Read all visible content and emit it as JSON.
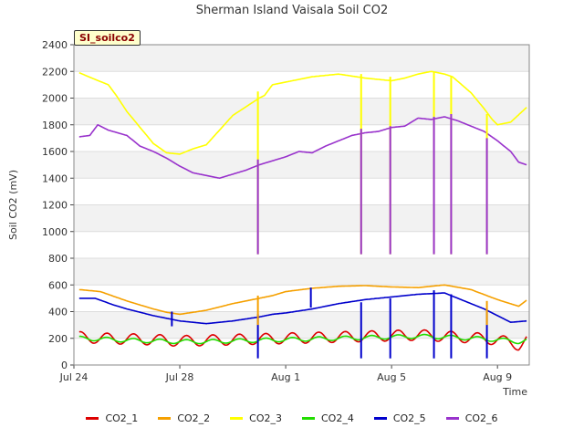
{
  "chart_data": {
    "type": "line",
    "title": "Sherman Island Vaisala Soil CO2",
    "site_label": "SI_soilco2",
    "xlabel": "Time",
    "ylabel": "Soil CO2 (mV)",
    "xlim": [
      0,
      17.2
    ],
    "ylim": [
      0,
      2400
    ],
    "x_ticks": [
      {
        "x": 0,
        "label": "Jul 24"
      },
      {
        "x": 4,
        "label": "Jul 28"
      },
      {
        "x": 8,
        "label": "Aug 1"
      },
      {
        "x": 12,
        "label": "Aug 5"
      },
      {
        "x": 16,
        "label": "Aug 9"
      }
    ],
    "y_ticks": [
      0,
      200,
      400,
      600,
      800,
      1000,
      1200,
      1400,
      1600,
      1800,
      2000,
      2200,
      2400
    ],
    "grid": "horizontal bands",
    "legend_position": "bottom",
    "series": [
      {
        "name": "CO2_1",
        "color": "#dd0000",
        "x": [
          0.2,
          1,
          2,
          3,
          4,
          5,
          6,
          7,
          8,
          9,
          10,
          11,
          12,
          13,
          14,
          15,
          16,
          16.8,
          17.1
        ],
        "y": [
          210,
          200,
          195,
          190,
          180,
          185,
          190,
          195,
          200,
          205,
          210,
          215,
          220,
          225,
          215,
          205,
          190,
          150,
          190
        ],
        "amp": 40
      },
      {
        "name": "CO2_2",
        "color": "#f5a000",
        "x": [
          0.2,
          1,
          2,
          3,
          3.5,
          4,
          5,
          6,
          7,
          7.5,
          8,
          9,
          10,
          11,
          12,
          13,
          14,
          15,
          16,
          16.8,
          17.1
        ],
        "y": [
          565,
          550,
          480,
          420,
          395,
          380,
          410,
          460,
          500,
          520,
          550,
          575,
          590,
          595,
          585,
          580,
          600,
          565,
          490,
          440,
          485
        ],
        "amp": 0
      },
      {
        "name": "CO2_3",
        "color": "#ffff00",
        "x": [
          0.2,
          0.8,
          1.3,
          1.6,
          2,
          3,
          3.5,
          4,
          4.5,
          5,
          6,
          7,
          7.2,
          7.5,
          8,
          9,
          10,
          11,
          12,
          12.5,
          13,
          13.5,
          14,
          14.3,
          15,
          15.5,
          15.8,
          16,
          16.5,
          17.1
        ],
        "y": [
          2190,
          2140,
          2100,
          2020,
          1900,
          1660,
          1590,
          1580,
          1620,
          1650,
          1870,
          2000,
          2020,
          2100,
          2120,
          2160,
          2180,
          2150,
          2130,
          2150,
          2180,
          2200,
          2180,
          2160,
          2040,
          1920,
          1840,
          1800,
          1820,
          1930
        ],
        "amp": 0
      },
      {
        "name": "CO2_4",
        "color": "#22dd00",
        "x": [
          0.2,
          1,
          2,
          3,
          4,
          5,
          6,
          7,
          8,
          9,
          10,
          11,
          12,
          13,
          14,
          15,
          16,
          16.8,
          17.1
        ],
        "y": [
          200,
          195,
          185,
          180,
          175,
          175,
          180,
          185,
          190,
          195,
          200,
          205,
          210,
          215,
          210,
          200,
          190,
          175,
          185
        ],
        "amp": 15
      },
      {
        "name": "CO2_5",
        "color": "#0000cc",
        "x": [
          0.2,
          0.8,
          1.5,
          2,
          3,
          4,
          5,
          6,
          7,
          7.5,
          8,
          9,
          10,
          11,
          12,
          13,
          14,
          14.5,
          15,
          15.5,
          16,
          16.5,
          17.1
        ],
        "y": [
          500,
          500,
          450,
          420,
          370,
          330,
          310,
          330,
          360,
          380,
          390,
          420,
          460,
          490,
          510,
          530,
          540,
          500,
          460,
          420,
          370,
          320,
          330
        ],
        "amp": 0
      },
      {
        "name": "CO2_6",
        "color": "#9933cc",
        "x": [
          0.2,
          0.6,
          0.9,
          1.3,
          2,
          2.5,
          3,
          3.5,
          4,
          4.5,
          5,
          5.5,
          6,
          6.5,
          7,
          7.5,
          8,
          8.5,
          9,
          9.5,
          10,
          10.5,
          11,
          11.5,
          12,
          12.5,
          13,
          13.5,
          14,
          14.5,
          15,
          15.5,
          16,
          16.5,
          16.8,
          17.1
        ],
        "y": [
          1710,
          1720,
          1800,
          1760,
          1720,
          1640,
          1600,
          1550,
          1490,
          1440,
          1420,
          1400,
          1430,
          1460,
          1500,
          1530,
          1560,
          1600,
          1590,
          1640,
          1680,
          1720,
          1740,
          1750,
          1780,
          1790,
          1850,
          1840,
          1860,
          1830,
          1790,
          1750,
          1680,
          1600,
          1520,
          1500
        ],
        "amp": 0
      }
    ],
    "spikes": [
      {
        "series": "CO2_3",
        "x": 6.95,
        "from": 2050,
        "to": 830
      },
      {
        "series": "CO2_6",
        "x": 6.95,
        "from": 1540,
        "to": 830
      },
      {
        "series": "CO2_3",
        "x": 10.85,
        "from": 2180,
        "to": 830
      },
      {
        "series": "CO2_6",
        "x": 10.85,
        "from": 1770,
        "to": 830
      },
      {
        "series": "CO2_3",
        "x": 11.95,
        "from": 2160,
        "to": 830
      },
      {
        "series": "CO2_6",
        "x": 11.95,
        "from": 1790,
        "to": 830
      },
      {
        "series": "CO2_3",
        "x": 13.6,
        "from": 2200,
        "to": 830
      },
      {
        "series": "CO2_6",
        "x": 13.6,
        "from": 1860,
        "to": 830
      },
      {
        "series": "CO2_3",
        "x": 14.25,
        "from": 2160,
        "to": 830
      },
      {
        "series": "CO2_6",
        "x": 14.25,
        "from": 1880,
        "to": 830
      },
      {
        "series": "CO2_3",
        "x": 15.6,
        "from": 1880,
        "to": 830
      },
      {
        "series": "CO2_6",
        "x": 15.6,
        "from": 1700,
        "to": 830
      },
      {
        "series": "CO2_5",
        "x": 6.95,
        "from": 380,
        "to": 50
      },
      {
        "series": "CO2_5",
        "x": 10.85,
        "from": 470,
        "to": 50
      },
      {
        "series": "CO2_5",
        "x": 11.95,
        "from": 500,
        "to": 50
      },
      {
        "series": "CO2_5",
        "x": 13.6,
        "from": 560,
        "to": 50
      },
      {
        "series": "CO2_5",
        "x": 14.25,
        "from": 530,
        "to": 50
      },
      {
        "series": "CO2_5",
        "x": 15.6,
        "from": 400,
        "to": 50
      },
      {
        "series": "CO2_5",
        "x": 8.95,
        "from": 580,
        "to": 430
      },
      {
        "series": "CO2_5",
        "x": 3.7,
        "from": 400,
        "to": 290
      },
      {
        "series": "CO2_2",
        "x": 6.95,
        "from": 520,
        "to": 300
      },
      {
        "series": "CO2_2",
        "x": 15.6,
        "from": 480,
        "to": 300
      }
    ]
  }
}
